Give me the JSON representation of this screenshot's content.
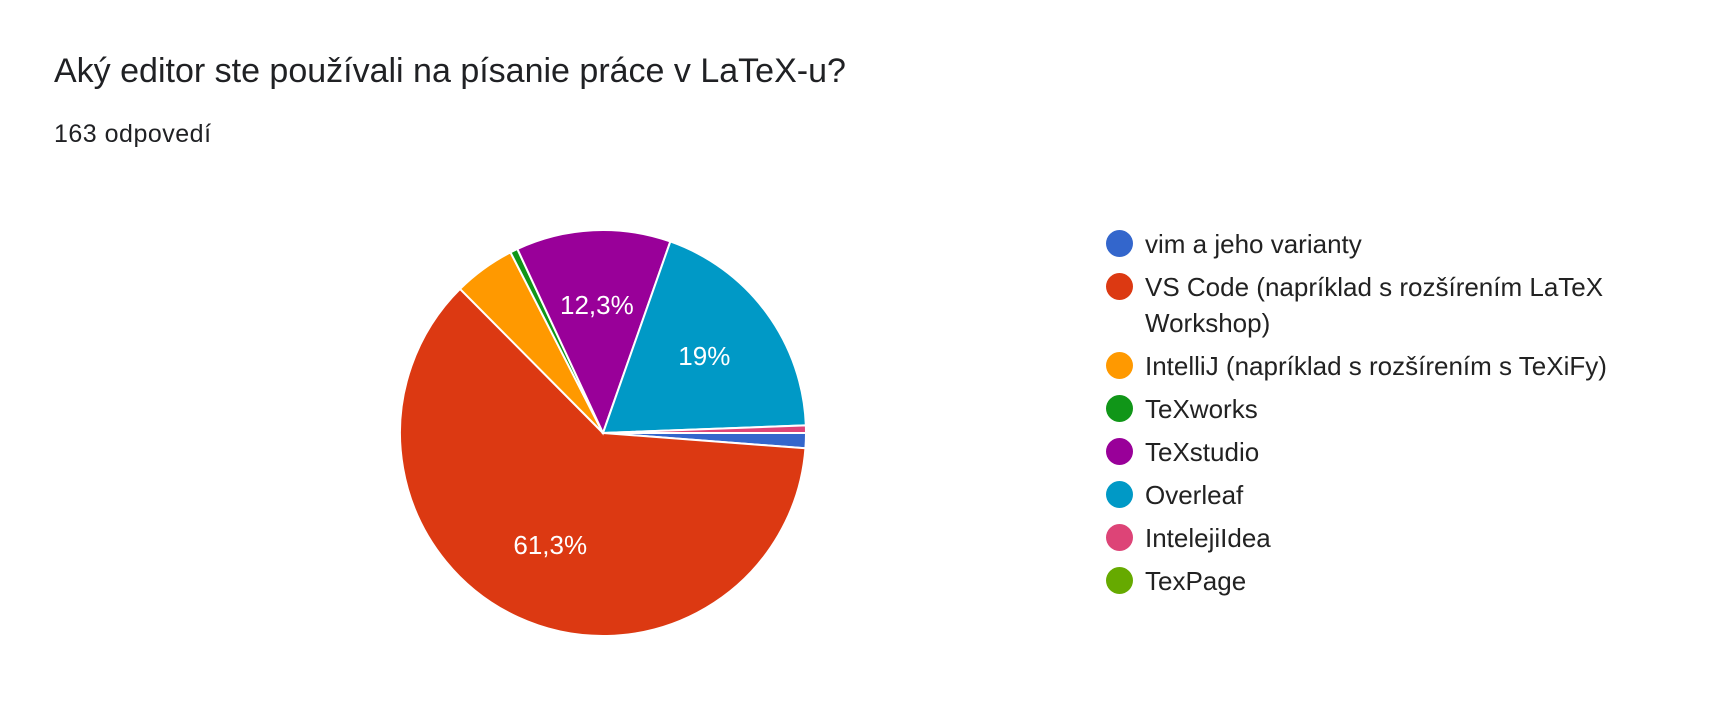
{
  "chart_data": {
    "type": "pie",
    "title": "Aký editor ste používali na písanie práce v LaTeX-u?",
    "subtitle": "163 odpovedí",
    "categories": [
      "vim a jeho varianty",
      "VS Code (napríklad s rozšírením LaTeX Workshop)",
      "IntelliJ (napríklad s rozšírením s TeXiFy)",
      "TeXworks",
      "TeXstudio",
      "Overleaf",
      "IntelejiIdea",
      "TexPage"
    ],
    "values": [
      1.2,
      61.3,
      4.9,
      0.6,
      12.3,
      19,
      0.6,
      0
    ],
    "value_labels": [
      null,
      "61,3%",
      null,
      null,
      "12,3%",
      "19%",
      null,
      null
    ],
    "colors": [
      "#3366cc",
      "#dc3912",
      "#ff9900",
      "#109618",
      "#990099",
      "#0099c6",
      "#dd4477",
      "#66aa00"
    ],
    "legend": "right"
  }
}
